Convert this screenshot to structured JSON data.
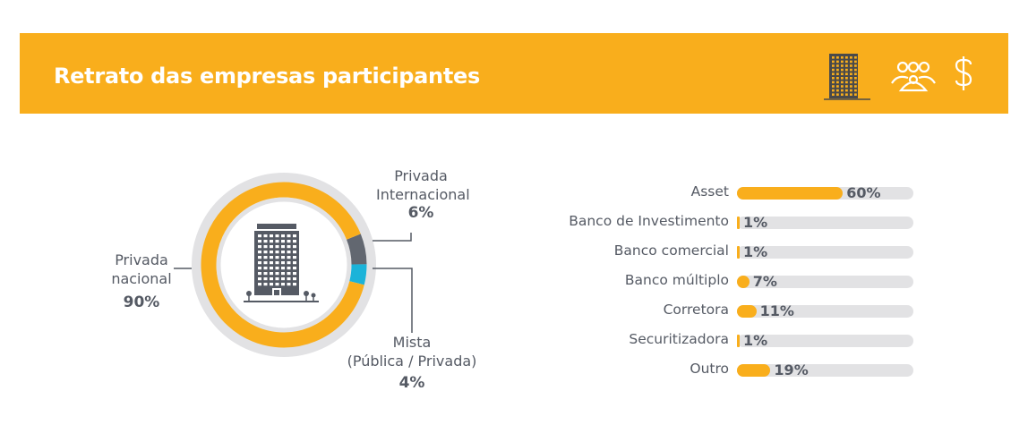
{
  "header": {
    "title": "Retrato das empresas participantes",
    "icons": [
      "building-icon",
      "people-icon",
      "dollar-icon"
    ]
  },
  "colors": {
    "accent": "#F9AE1C",
    "gray": "#626770",
    "cyan": "#1BB3D9",
    "track": "#E2E2E4",
    "text": "#555a64"
  },
  "chart_data": [
    {
      "type": "pie",
      "center_icon": "building-icon",
      "slices": [
        {
          "label_lines": [
            "Privada",
            "nacional"
          ],
          "value": 90,
          "value_label": "90%",
          "color": "#F9AE1C"
        },
        {
          "label_lines": [
            "Privada",
            "Internacional"
          ],
          "value": 6,
          "value_label": "6%",
          "color": "#626770"
        },
        {
          "label_lines": [
            "Mista",
            "(Pública / Privada)"
          ],
          "value": 4,
          "value_label": "4%",
          "color": "#1BB3D9"
        }
      ]
    },
    {
      "type": "bar",
      "orientation": "horizontal",
      "categories": [
        "Asset",
        "Banco de Investimento",
        "Banco comercial",
        "Banco múltiplo",
        "Corretora",
        "Securitizadora",
        "Outro"
      ],
      "values": [
        60,
        1,
        1,
        7,
        11,
        1,
        19
      ],
      "value_labels": [
        "60%",
        "1%",
        "1%",
        "7%",
        "11%",
        "1%",
        "19%"
      ],
      "xlim": [
        0,
        100
      ]
    }
  ]
}
